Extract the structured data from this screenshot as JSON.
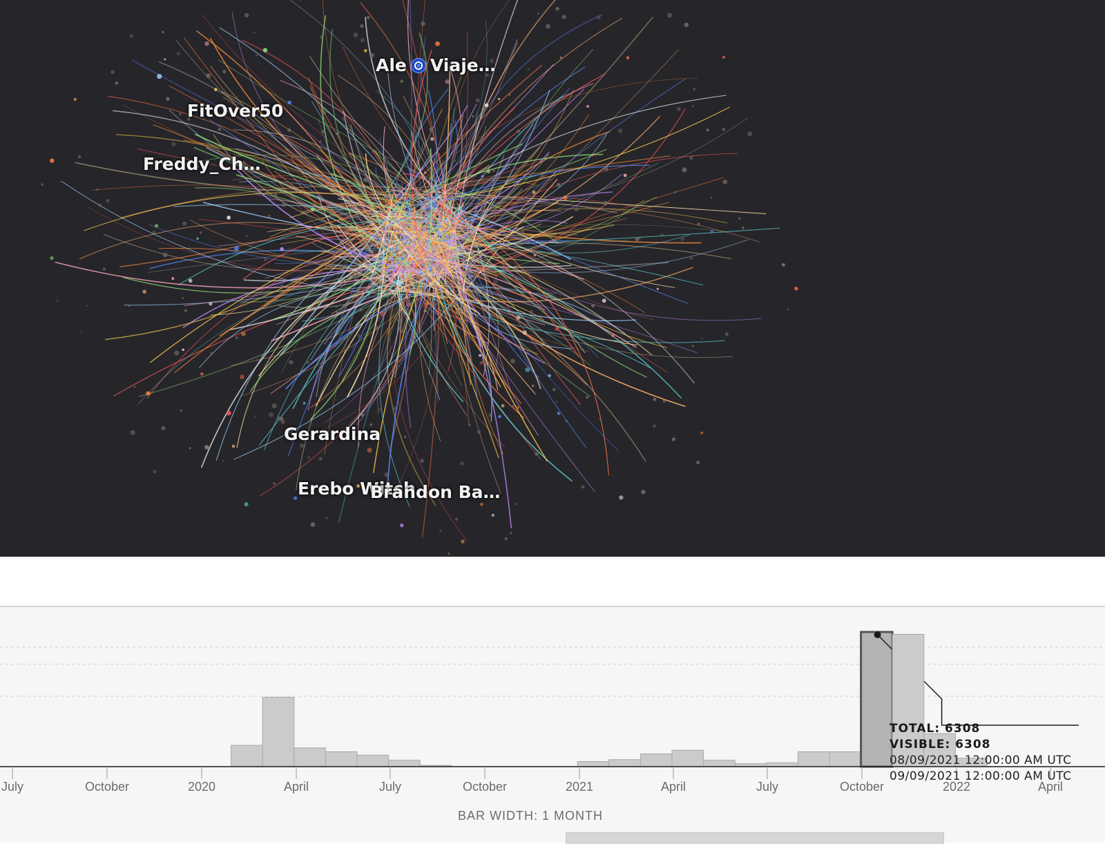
{
  "graph": {
    "background": "#26252a",
    "labels": [
      {
        "text": "Ale",
        "suffix": "Viaje…",
        "icon": "nazar-amulet-icon"
      },
      {
        "text": "FitOver50"
      },
      {
        "text": "Freddy_Ch…"
      },
      {
        "text": "Gerardina"
      },
      {
        "text": "Erebo Witch"
      },
      {
        "text": "Brandon Ba…"
      }
    ]
  },
  "timeline": {
    "tick_labels": [
      "July",
      "October",
      "2020",
      "April",
      "July",
      "October",
      "2021",
      "April",
      "July",
      "October",
      "2022",
      "April"
    ],
    "bar_width_label": "BAR WIDTH: 1 MONTH",
    "tooltip": {
      "total": "TOTAL: 6308",
      "visible": "VISIBLE: 6308",
      "range_start": "08/09/2021 12:00:00 AM UTC",
      "range_end": "09/09/2021 12:00:00 AM UTC"
    }
  },
  "chart_data": {
    "type": "bar",
    "title": "",
    "xlabel": "BAR WIDTH: 1 MONTH",
    "ylabel": "",
    "categories": [
      "Dec 2019",
      "Jan 2020",
      "Feb 2020",
      "Mar 2020",
      "Apr 2020",
      "May 2020",
      "Jun 2020",
      "Jul 2020",
      "Aug 2020",
      "Sep 2020",
      "Oct 2020",
      "Nov 2020",
      "Dec 2020",
      "Jan 2021",
      "Feb 2021",
      "Mar 2021",
      "Apr 2021",
      "May 2021",
      "Jun 2021",
      "Jul 2021",
      "Aug 2021",
      "Sep 2021",
      "Oct 2021",
      "Nov 2021",
      "Dec 2021"
    ],
    "values": [
      0,
      1000,
      3250,
      880,
      700,
      540,
      300,
      60,
      0,
      0,
      0,
      0,
      240,
      330,
      600,
      770,
      300,
      140,
      180,
      700,
      700,
      6308,
      6200,
      1550,
      400
    ],
    "highlighted_category": "Sep 2021",
    "ylim": [
      0,
      6600
    ],
    "gridlines": [
      5600,
      4800,
      3300
    ]
  }
}
